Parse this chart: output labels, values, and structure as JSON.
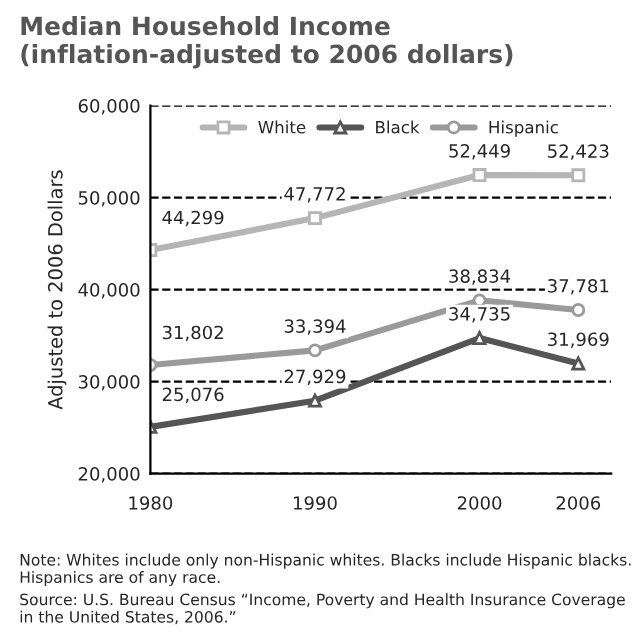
{
  "chart_data": {
    "type": "line",
    "title": "Median Household Income (inflation-adjusted to 2006 dollars)",
    "ylabel": "Adjusted to 2006 Dollars",
    "x": [
      1980,
      1990,
      2000,
      2006
    ],
    "xlim": [
      1980,
      2008
    ],
    "xticks": [
      1980,
      1990,
      2000,
      2006
    ],
    "ylim": [
      20000,
      60000
    ],
    "yticks": [
      {
        "value": 20000,
        "label": "20,000"
      },
      {
        "value": 30000,
        "label": "30,000"
      },
      {
        "value": 40000,
        "label": "40,000"
      },
      {
        "value": 50000,
        "label": "50,000"
      },
      {
        "value": 60000,
        "label": "60,000"
      }
    ],
    "grid": "y",
    "legend": "top",
    "line_style": "solid",
    "series": [
      {
        "name": "White",
        "color": "#b5b5b5",
        "marker": "square",
        "values": [
          44299,
          47772,
          52449,
          52423
        ],
        "value_labels": [
          "44,299",
          "47,772",
          "52,449",
          "52,423"
        ]
      },
      {
        "name": "Black",
        "color": "#555555",
        "marker": "triangle",
        "values": [
          25076,
          27929,
          34735,
          31969
        ],
        "value_labels": [
          "25,076",
          "27,929",
          "34,735",
          "31,969"
        ]
      },
      {
        "name": "Hispanic",
        "color": "#9a9a9a",
        "marker": "circle",
        "values": [
          31802,
          33394,
          38834,
          37781
        ],
        "value_labels": [
          "31,802",
          "33,394",
          "38,834",
          "37,781"
        ]
      }
    ],
    "annotations": [
      "Note: Whites include only non-Hispanic whites. Blacks include Hispanic blacks. Hispanics are of any race.",
      "Source: U.S. Bureau Census “Income, Poverty and Health Insurance Coverage in the United States, 2006.”"
    ]
  }
}
